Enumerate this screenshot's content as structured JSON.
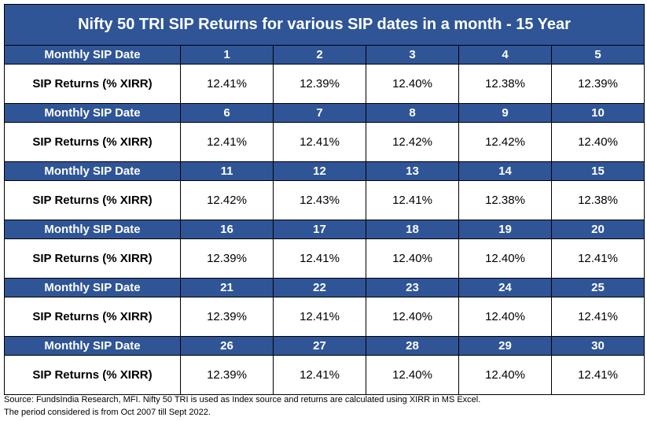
{
  "title": "Nifty 50 TRI SIP Returns for various SIP dates in a month - 15 Year",
  "row_label_date": "Monthly SIP Date",
  "row_label_returns": "SIP Returns (% XIRR)",
  "blocks": [
    {
      "dates": [
        "1",
        "2",
        "3",
        "4",
        "5"
      ],
      "returns": [
        "12.41%",
        "12.39%",
        "12.40%",
        "12.38%",
        "12.39%"
      ]
    },
    {
      "dates": [
        "6",
        "7",
        "8",
        "9",
        "10"
      ],
      "returns": [
        "12.41%",
        "12.41%",
        "12.42%",
        "12.42%",
        "12.40%"
      ]
    },
    {
      "dates": [
        "11",
        "12",
        "13",
        "14",
        "15"
      ],
      "returns": [
        "12.42%",
        "12.43%",
        "12.41%",
        "12.38%",
        "12.38%"
      ]
    },
    {
      "dates": [
        "16",
        "17",
        "18",
        "19",
        "20"
      ],
      "returns": [
        "12.39%",
        "12.41%",
        "12.40%",
        "12.40%",
        "12.41%"
      ]
    },
    {
      "dates": [
        "21",
        "22",
        "23",
        "24",
        "25"
      ],
      "returns": [
        "12.39%",
        "12.41%",
        "12.40%",
        "12.40%",
        "12.41%"
      ]
    },
    {
      "dates": [
        "26",
        "27",
        "28",
        "29",
        "30"
      ],
      "returns": [
        "12.39%",
        "12.41%",
        "12.40%",
        "12.40%",
        "12.41%"
      ]
    }
  ],
  "footer": {
    "line1": "Source: FundsIndia Research, MFI. Nifty 50 TRI is used as Index source and returns are calculated using XIRR in MS Excel.",
    "line2": "The period considered is from Oct 2007 till Sept 2022."
  },
  "colors": {
    "header_bg": "#2f5597",
    "header_text": "#ffffff"
  }
}
